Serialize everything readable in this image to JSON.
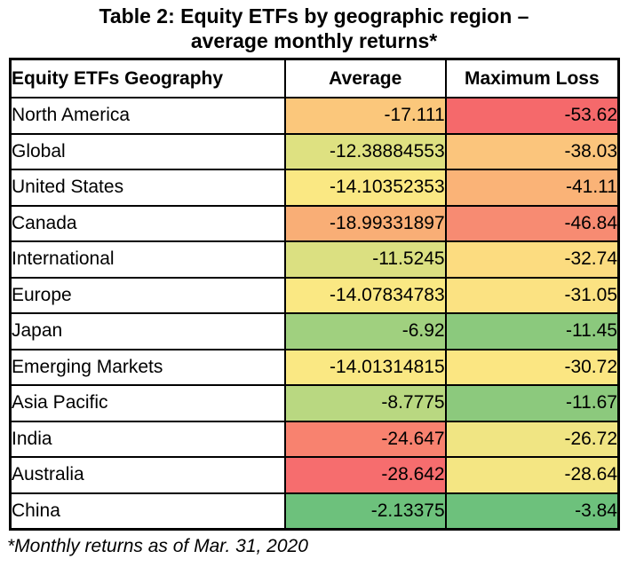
{
  "title": {
    "line1": "Table 2: Equity ETFs by geographic region –",
    "line2": "average monthly returns*"
  },
  "footnote": "*Monthly returns as of Mar. 31, 2020",
  "table": {
    "headers": [
      "Equity ETFs Geography",
      "Average",
      "Maximum Loss"
    ],
    "rows": [
      {
        "region": "North America",
        "average": "-17.111",
        "average_color": "#FBC77B",
        "max_loss": "-53.62",
        "max_loss_color": "#F5696B"
      },
      {
        "region": "Global",
        "average": "-12.38884553",
        "average_color": "#DEE181",
        "max_loss": "-38.03",
        "max_loss_color": "#FBC57C"
      },
      {
        "region": "United States",
        "average": "-14.10352353",
        "average_color": "#FAE883",
        "max_loss": "-41.11",
        "max_loss_color": "#FAB377"
      },
      {
        "region": "Canada",
        "average": "-18.99331897",
        "average_color": "#F9AE76",
        "max_loss": "-46.84",
        "max_loss_color": "#F78B72"
      },
      {
        "region": "International",
        "average": "-11.5245",
        "average_color": "#DBE081",
        "max_loss": "-32.74",
        "max_loss_color": "#FCDC80"
      },
      {
        "region": "Europe",
        "average": "-14.07834783",
        "average_color": "#FAE883",
        "max_loss": "-31.05",
        "max_loss_color": "#FBE282"
      },
      {
        "region": "Japan",
        "average": "-6.92",
        "average_color": "#A0D07F",
        "max_loss": "-11.45",
        "max_loss_color": "#8BC97D"
      },
      {
        "region": "Emerging Markets",
        "average": "-14.01314815",
        "average_color": "#FAE883",
        "max_loss": "-30.72",
        "max_loss_color": "#FBE682"
      },
      {
        "region": "Asia Pacific",
        "average": "-8.7775",
        "average_color": "#B9D881",
        "max_loss": "-11.67",
        "max_loss_color": "#8CC97D"
      },
      {
        "region": "India",
        "average": "-24.647",
        "average_color": "#F8826F",
        "max_loss": "-26.72",
        "max_loss_color": "#F0E583"
      },
      {
        "region": "Australia",
        "average": "-28.642",
        "average_color": "#F66D6E",
        "max_loss": "-28.64",
        "max_loss_color": "#F4E683"
      },
      {
        "region": "China",
        "average": "-2.13375",
        "average_color": "#6DC17C",
        "max_loss": "-3.84",
        "max_loss_color": "#6DC17C"
      }
    ]
  },
  "chart_data": {
    "type": "table",
    "title": "Table 2: Equity ETFs by geographic region – average monthly returns*",
    "columns": [
      "Equity ETFs Geography",
      "Average",
      "Maximum Loss"
    ],
    "rows": [
      [
        "North America",
        -17.111,
        -53.62
      ],
      [
        "Global",
        -12.38884553,
        -38.03
      ],
      [
        "United States",
        -14.10352353,
        -41.11
      ],
      [
        "Canada",
        -18.99331897,
        -46.84
      ],
      [
        "International",
        -11.5245,
        -32.74
      ],
      [
        "Europe",
        -14.07834783,
        -31.05
      ],
      [
        "Japan",
        -6.92,
        -11.45
      ],
      [
        "Emerging Markets",
        -14.01314815,
        -30.72
      ],
      [
        "Asia Pacific",
        -8.7775,
        -11.67
      ],
      [
        "India",
        -24.647,
        -26.72
      ],
      [
        "Australia",
        -28.642,
        -28.64
      ],
      [
        "China",
        -2.13375,
        -3.84
      ]
    ],
    "footnote": "*Monthly returns as of Mar. 31, 2020",
    "color_scale": {
      "low": "#F8696B",
      "mid": "#FFEB84",
      "high": "#63BE7B",
      "note": "red-yellow-green heatmap on value cells"
    },
    "border_color": "#000000",
    "background": "#FFFFFF"
  }
}
